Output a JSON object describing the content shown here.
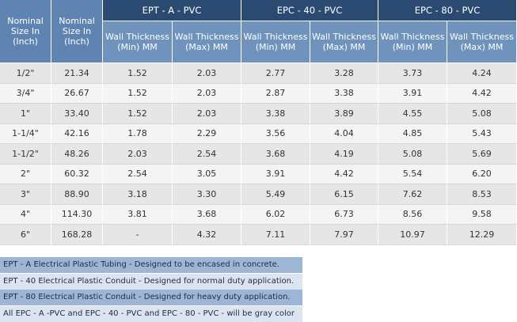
{
  "table": {
    "corner_headers": [
      "Nominal Size In (Inch)",
      "Nominal Size In (Inch)"
    ],
    "groups": [
      "EPT - A - PVC",
      "EPC - 40 - PVC",
      "EPC - 80 - PVC"
    ],
    "subheaders": [
      "Wall Thickness (Min) MM",
      "Wall Thickness (Max) MM",
      "Wall Thickness (Min) MM",
      "Wall Thickness (Max) MM",
      "Wall Thickness (Min) MM",
      "Wall Thickness (Max) MM"
    ],
    "rows": [
      [
        "1/2\"",
        "21.34",
        "1.52",
        "2.03",
        "2.77",
        "3.28",
        "3.73",
        "4.24"
      ],
      [
        "3/4\"",
        "26.67",
        "1.52",
        "2.03",
        "2.87",
        "3.38",
        "3.91",
        "4.42"
      ],
      [
        "1\"",
        "33.40",
        "1.52",
        "2.03",
        "3.38",
        "3.89",
        "4.55",
        "5.08"
      ],
      [
        "1-1/4\"",
        "42.16",
        "1.78",
        "2.29",
        "3.56",
        "4.04",
        "4.85",
        "5.43"
      ],
      [
        "1-1/2\"",
        "48.26",
        "2.03",
        "2.54",
        "3.68",
        "4.19",
        "5.08",
        "5.69"
      ],
      [
        "2\"",
        "60.32",
        "2.54",
        "3.05",
        "3.91",
        "4.42",
        "5.54",
        "6.20"
      ],
      [
        "3\"",
        "88.90",
        "3.18",
        "3.30",
        "5.49",
        "6.15",
        "7.62",
        "8.53"
      ],
      [
        "4\"",
        "114.30",
        "3.81",
        "3.68",
        "6.02",
        "6.73",
        "8.56",
        "9.58"
      ],
      [
        "6\"",
        "168.28",
        "-",
        "4.32",
        "7.11",
        "7.97",
        "10.97",
        "12.29"
      ]
    ]
  },
  "notes": [
    "EPT - A Electrical Plastic Tubing - Designed to be encased in concrete.",
    "EPT - 40  Electrical Plastic Conduit - Designed for normal duty application.",
    "EPT - 80  Electrical Plastic Conduit - Designed for heavy duty application.",
    "All EPC - A -PVC and EPC - 40 - PVC and EPC - 80 - PVC - will be gray color"
  ]
}
